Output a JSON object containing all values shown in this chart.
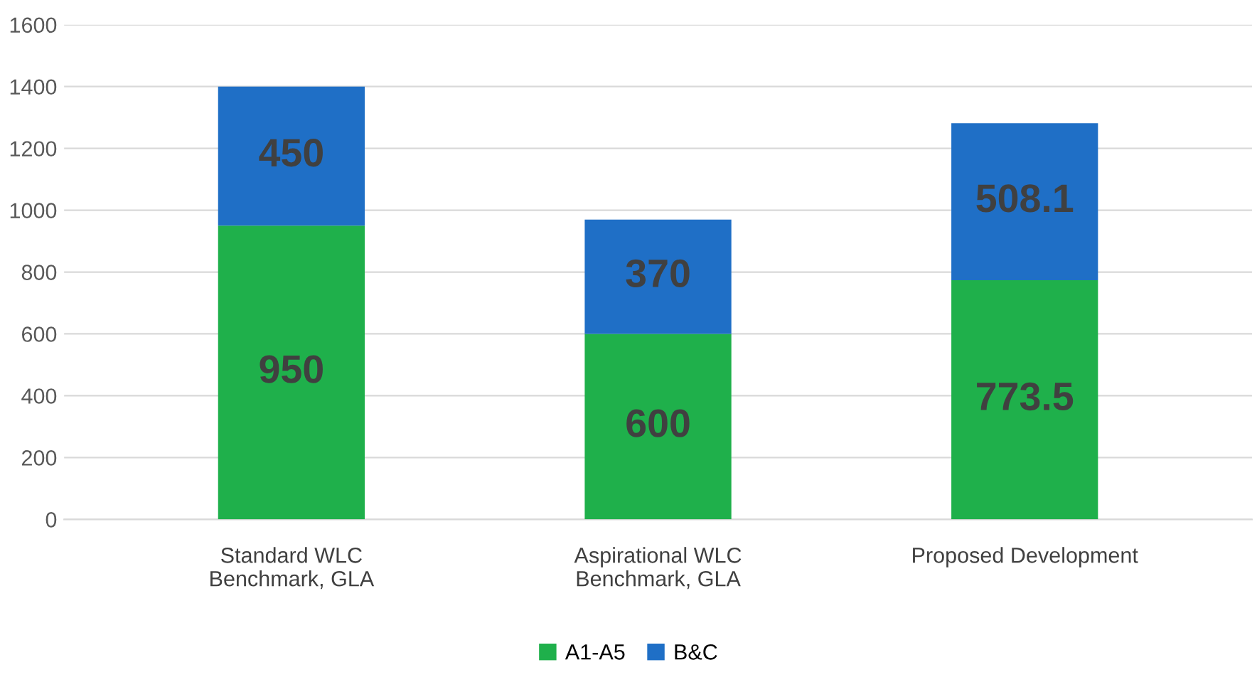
{
  "chart_data": {
    "type": "bar",
    "stacked": true,
    "categories": [
      "Standard WLC\nBenchmark, GLA",
      "Aspirational WLC\nBenchmark, GLA",
      "Proposed Development"
    ],
    "series": [
      {
        "name": "A1-A5",
        "color": "#1fb04b",
        "values": [
          950,
          600,
          773.5
        ]
      },
      {
        "name": "B&C",
        "color": "#1f6fc6",
        "values": [
          450,
          370,
          508.1
        ]
      }
    ],
    "ylim": [
      0,
      1600
    ],
    "yticks": [
      0,
      200,
      400,
      600,
      800,
      1000,
      1200,
      1400,
      1600
    ],
    "grid": "y",
    "legend": "bottom",
    "data_labels": true
  }
}
